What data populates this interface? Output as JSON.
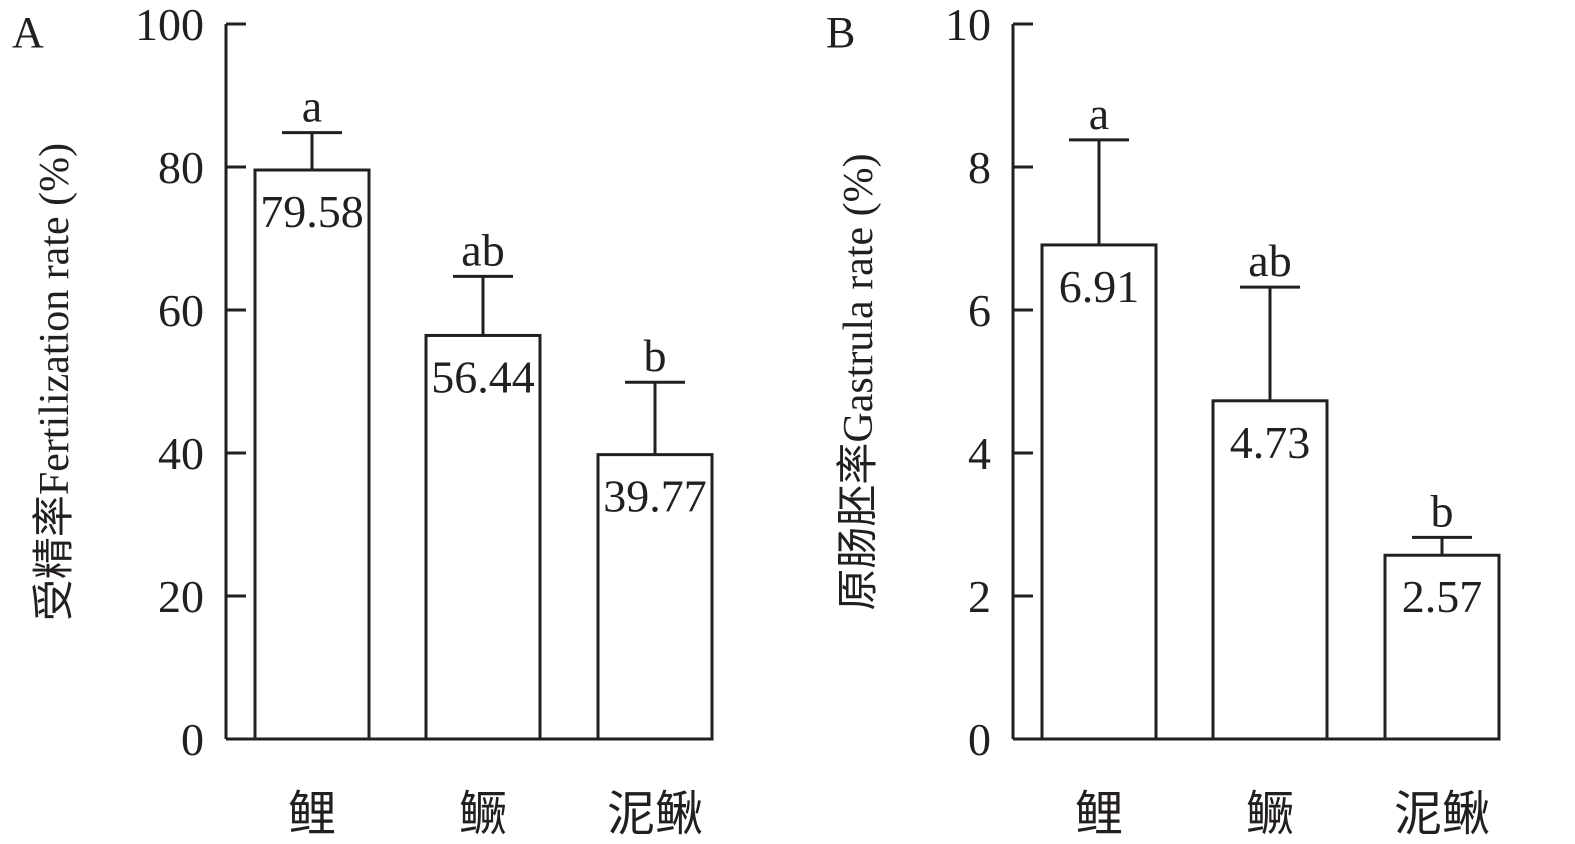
{
  "chart_data": [
    {
      "type": "bar",
      "panel_label": "A",
      "ylabel": "受精率Fertilization rate (%)",
      "categories": [
        "鲤",
        "鳜",
        "泥鳅"
      ],
      "values": [
        79.58,
        56.44,
        39.77
      ],
      "value_labels": [
        "79.58",
        "56.44",
        "39.77"
      ],
      "error_upper": [
        84.8,
        64.7,
        49.9
      ],
      "significance": [
        "a",
        "ab",
        "b"
      ],
      "ylim": [
        0,
        100
      ],
      "yticks": [
        0,
        20,
        40,
        60,
        80,
        100
      ],
      "ytick_labels": [
        "0",
        "20",
        "40",
        "60",
        "80",
        "100"
      ],
      "grid": false,
      "bar_fill": "#ffffff",
      "stroke_color": "#231f20"
    },
    {
      "type": "bar",
      "panel_label": "B",
      "ylabel": "原肠胚率Gastrula rate (%)",
      "categories": [
        "鲤",
        "鳜",
        "泥鳅"
      ],
      "values": [
        6.91,
        4.73,
        2.57
      ],
      "value_labels": [
        "6.91",
        "4.73",
        "2.57"
      ],
      "error_upper": [
        8.38,
        6.32,
        2.82
      ],
      "significance": [
        "a",
        "ab",
        "b"
      ],
      "ylim": [
        0,
        10
      ],
      "yticks": [
        0,
        2,
        4,
        6,
        8,
        10
      ],
      "ytick_labels": [
        "0",
        "2",
        "4",
        "6",
        "8",
        "10"
      ],
      "grid": false,
      "bar_fill": "#ffffff",
      "stroke_color": "#231f20"
    }
  ]
}
